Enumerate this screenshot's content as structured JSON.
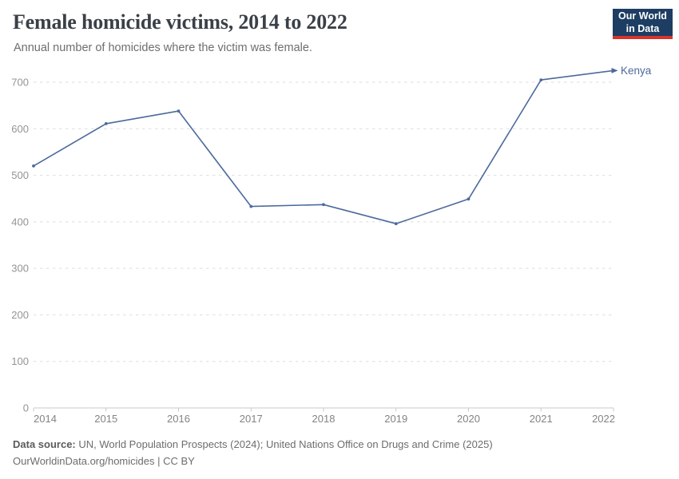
{
  "header": {
    "title": "Female homicide victims, 2014 to 2022",
    "subtitle": "Annual number of homicides where the victim was female."
  },
  "logo": {
    "line1": "Our World",
    "line2": "in Data",
    "bg_color": "#1d3d63",
    "accent_color": "#d8352a"
  },
  "chart_data": {
    "type": "line",
    "title": "Female homicide victims, 2014 to 2022",
    "xlabel": "",
    "ylabel": "",
    "x": [
      2014,
      2015,
      2016,
      2017,
      2018,
      2019,
      2020,
      2021,
      2022
    ],
    "series": [
      {
        "name": "Kenya",
        "color": "#4c6a9c",
        "values": [
          520,
          611,
          638,
          433,
          437,
          396,
          449,
          705,
          725
        ]
      }
    ],
    "ylim": [
      0,
      700
    ],
    "yticks": [
      0,
      100,
      200,
      300,
      400,
      500,
      600,
      700
    ],
    "grid": "horizontal-dashed",
    "legend": "end-of-line-label"
  },
  "footer": {
    "source_bold": "Data source:",
    "source_rest": " UN, World Population Prospects (2024); United Nations Office on Drugs and Crime (2025)",
    "license": "OurWorldinData.org/homicides | CC BY"
  },
  "colors": {
    "line": "#4c6a9c",
    "grid": "#dedede",
    "axis": "#c9c9c9",
    "y_tick_label": "#949494",
    "x_tick_label": "#838383",
    "series_label": "#4c6a9c"
  }
}
